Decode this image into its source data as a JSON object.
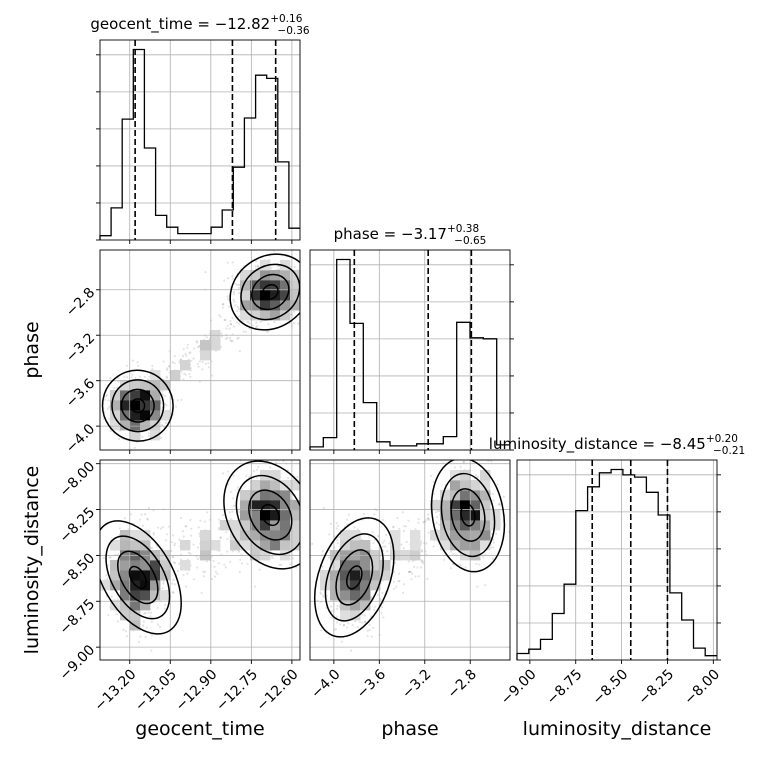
{
  "chart_data": {
    "type": "corner",
    "parameters": [
      {
        "name": "geocent_time",
        "label": "geocent_time",
        "range": [
          -13.31,
          -12.57
        ],
        "ticks": [
          -13.2,
          -13.05,
          -12.9,
          -12.75,
          -12.6
        ],
        "tick_labels": [
          "−13.20",
          "−13.05",
          "−12.90",
          "−12.75",
          "−12.60"
        ],
        "title": {
          "main": "geocent_time = −12.82",
          "sup": "+0.16",
          "sub": "−0.36"
        },
        "median": -12.82,
        "quantiles": [
          -13.18,
          -12.82,
          -12.66
        ]
      },
      {
        "name": "phase",
        "label": "phase",
        "range": [
          -4.21,
          -2.45
        ],
        "ticks": [
          -4.0,
          -3.6,
          -3.2,
          -2.8
        ],
        "tick_labels": [
          "−4.0",
          "−3.6",
          "−3.2",
          "−2.8"
        ],
        "title": {
          "main": "phase = −3.17",
          "sup": "+0.38",
          "sub": "−0.65"
        },
        "median": -3.17,
        "quantiles": [
          -3.82,
          -3.17,
          -2.79
        ]
      },
      {
        "name": "luminosity_distance",
        "label": "luminosity_distance",
        "range": [
          -9.07,
          -7.98
        ],
        "ticks": [
          -9.0,
          -8.75,
          -8.5,
          -8.25,
          -8.0
        ],
        "tick_labels": [
          "−9.00",
          "−8.75",
          "−8.50",
          "−8.25",
          "−8.00"
        ],
        "title": {
          "main": "luminosity_distance = −8.45",
          "sup": "+0.20",
          "sub": "−0.21"
        },
        "median": -8.45,
        "quantiles": [
          -8.66,
          -8.45,
          -8.25
        ]
      }
    ],
    "histograms": [
      {
        "param": "geocent_time",
        "counts": [
          4,
          30,
          113,
          178,
          86,
          23,
          12,
          6,
          6,
          6,
          12,
          28,
          68,
          114,
          154,
          151,
          73,
          11
        ]
      },
      {
        "param": "phase",
        "counts": [
          3,
          12,
          185,
          123,
          46,
          8,
          4,
          4,
          6,
          6,
          13,
          124,
          109,
          108,
          5
        ]
      },
      {
        "param": "luminosity_distance",
        "counts": [
          6,
          10,
          19,
          43,
          70,
          138,
          160,
          173,
          176,
          171,
          169,
          155,
          134,
          62,
          37,
          11,
          4
        ]
      }
    ],
    "modes": [
      {
        "weight": 0.5,
        "mean": [
          -13.17,
          -3.82,
          -8.62
        ],
        "sd": [
          0.05,
          0.12,
          0.13
        ]
      },
      {
        "weight": 0.5,
        "mean": [
          -12.68,
          -2.82,
          -8.28
        ],
        "sd": [
          0.06,
          0.12,
          0.12
        ]
      }
    ],
    "grid": true
  }
}
